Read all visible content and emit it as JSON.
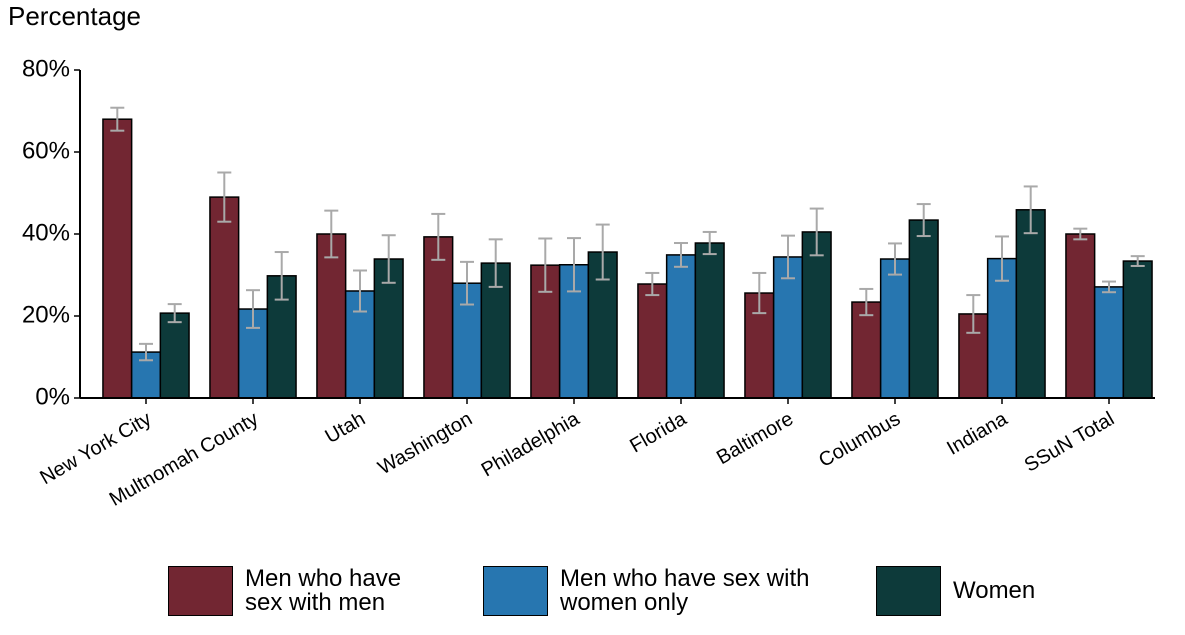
{
  "chart_data": {
    "type": "bar",
    "y_label": "Percentage",
    "categories": [
      "New York City",
      "Multnomah County",
      "Utah",
      "Washington",
      "Philadelphia",
      "Florida",
      "Baltimore",
      "Columbus",
      "Indiana",
      "SSuN Total"
    ],
    "series": [
      {
        "name": "Men who have sex with men",
        "color": "#722632",
        "values": [
          68,
          49,
          40,
          39.3,
          32.4,
          27.8,
          25.6,
          23.4,
          20.5,
          40
        ],
        "errors": [
          2.8,
          6,
          5.7,
          5.6,
          6.5,
          2.7,
          4.9,
          3.2,
          4.6,
          1.3
        ]
      },
      {
        "name": "Men who have sex with women only",
        "color": "#2776b0",
        "values": [
          11.2,
          21.7,
          26.1,
          28,
          32.5,
          34.9,
          34.4,
          33.9,
          34,
          27.1
        ],
        "errors": [
          2,
          4.6,
          5,
          5.2,
          6.5,
          2.9,
          5.2,
          3.8,
          5.4,
          1.3
        ]
      },
      {
        "name": "Women",
        "color": "#0d3a3a",
        "values": [
          20.7,
          29.8,
          33.9,
          32.9,
          35.6,
          37.8,
          40.5,
          43.4,
          45.9,
          33.4
        ],
        "errors": [
          2.2,
          5.8,
          5.8,
          5.8,
          6.7,
          2.7,
          5.7,
          3.9,
          5.7,
          1.2
        ]
      }
    ],
    "error_color": "#a9a9a9",
    "ylim": [
      0,
      80
    ],
    "yticks": [
      {
        "value": 0,
        "label": "0%"
      },
      {
        "value": 20,
        "label": "20%"
      },
      {
        "value": 40,
        "label": "40%"
      },
      {
        "value": 60,
        "label": "60%"
      },
      {
        "value": 80,
        "label": "80%"
      }
    ],
    "legend": "bottom"
  }
}
